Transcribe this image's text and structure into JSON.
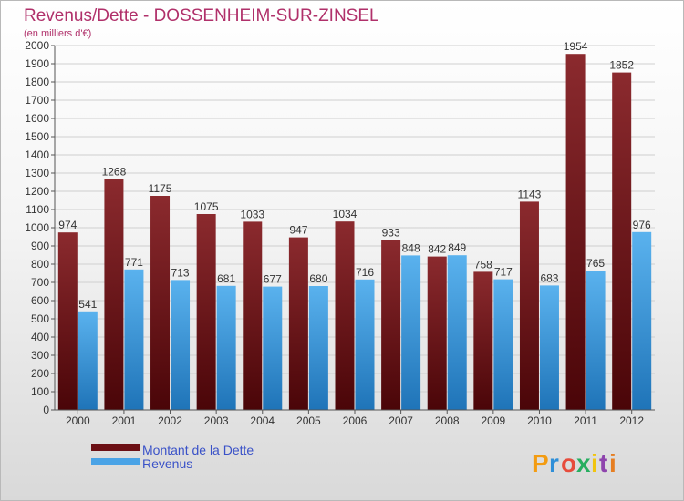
{
  "chart_data": {
    "type": "bar",
    "title": "Revenus/Dette - DOSSENHEIM-SUR-ZINSEL",
    "subtitle": "(en milliers d'€)",
    "xlabel": "",
    "ylabel": "",
    "categories": [
      "2000",
      "2001",
      "2002",
      "2003",
      "2004",
      "2005",
      "2006",
      "2007",
      "2008",
      "2009",
      "2010",
      "2011",
      "2012"
    ],
    "series": [
      {
        "name": "Montant de la Dette",
        "color": "#7a1a1f",
        "values": [
          974,
          1268,
          1175,
          1075,
          1033,
          947,
          1034,
          933,
          842,
          758,
          1143,
          1954,
          1852
        ]
      },
      {
        "name": "Revenus",
        "color": "#4aa3e6",
        "values": [
          541,
          771,
          713,
          681,
          677,
          680,
          716,
          848,
          849,
          717,
          683,
          765,
          976
        ]
      }
    ],
    "ylim": [
      0,
      2000
    ],
    "yticks": [
      0,
      100,
      200,
      300,
      400,
      500,
      600,
      700,
      800,
      900,
      1000,
      1100,
      1200,
      1300,
      1400,
      1500,
      1600,
      1700,
      1800,
      1900,
      2000
    ],
    "grid": true,
    "legend_position": "bottom-left"
  },
  "logo": {
    "text": "Proxiti",
    "letters": [
      "P",
      "r",
      "o",
      "x",
      "i",
      "t",
      "i"
    ],
    "colors": [
      "#f39c12",
      "#2f8fd8",
      "#e74c3c",
      "#27ae60",
      "#f1c40f",
      "#8e44ad",
      "#e67e22"
    ]
  }
}
